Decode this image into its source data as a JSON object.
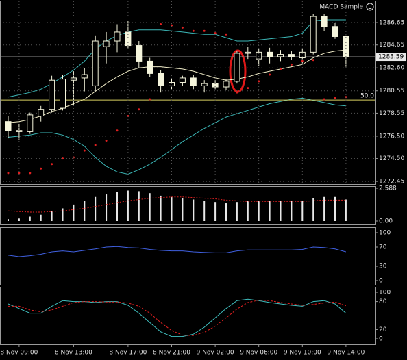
{
  "chart_data": [
    {
      "type": "candlestick",
      "title": "MACD Sample",
      "open": [
        1277.8,
        1277.0,
        1276.9,
        1278.3,
        1278.9,
        1279.0,
        1281.5,
        1281.7,
        1281.0,
        1284.5,
        1285.0,
        1285.8,
        1284.6,
        1283.2,
        1282.1,
        1281.0,
        1281.3,
        1281.7,
        1281.0,
        1281.2,
        1280.9,
        1281.4,
        1283.9,
        1283.4,
        1284.0,
        1283.6,
        1283.8,
        1283.5,
        1284.0,
        1287.2,
        1286.3,
        1285.4
      ],
      "high": [
        1278.3,
        1277.6,
        1278.6,
        1279.2,
        1281.9,
        1282.0,
        1282.3,
        1282.6,
        1285.5,
        1285.8,
        1286.5,
        1286.8,
        1285.0,
        1283.5,
        1282.4,
        1281.6,
        1281.9,
        1282.0,
        1281.5,
        1281.5,
        1281.6,
        1284.1,
        1284.5,
        1284.3,
        1284.4,
        1284.2,
        1284.1,
        1284.3,
        1287.4,
        1287.4,
        1286.6,
        1285.5
      ],
      "low": [
        1276.3,
        1276.2,
        1276.7,
        1277.8,
        1278.6,
        1278.8,
        1279.3,
        1280.5,
        1280.5,
        1283.0,
        1284.0,
        1284.3,
        1282.6,
        1281.8,
        1280.4,
        1280.6,
        1281.0,
        1280.7,
        1280.4,
        1280.7,
        1280.6,
        1281.2,
        1283.4,
        1282.8,
        1283.0,
        1283.2,
        1283.3,
        1283.0,
        1283.8,
        1285.9,
        1285.2,
        1282.7
      ],
      "close": [
        1277.0,
        1276.9,
        1278.4,
        1278.9,
        1281.5,
        1281.6,
        1281.7,
        1282.0,
        1285.0,
        1285.0,
        1285.8,
        1284.6,
        1283.2,
        1282.1,
        1281.0,
        1281.3,
        1281.7,
        1281.0,
        1281.2,
        1280.9,
        1281.4,
        1283.9,
        1284.0,
        1284.0,
        1283.6,
        1283.8,
        1283.6,
        1284.0,
        1287.2,
        1286.3,
        1285.4,
        1283.59
      ],
      "color": "#f5f5dc",
      "bands": {
        "color": "#3cb8b8",
        "upper": [
          1280.0,
          1280.2,
          1280.4,
          1280.7,
          1281.2,
          1281.8,
          1282.4,
          1283.2,
          1284.3,
          1285.0,
          1285.5,
          1285.8,
          1286.0,
          1286.0,
          1286.0,
          1285.9,
          1285.8,
          1285.7,
          1285.6,
          1285.6,
          1285.3,
          1285.0,
          1285.0,
          1285.1,
          1285.2,
          1285.3,
          1285.4,
          1285.7,
          1286.8,
          1286.9,
          1286.9,
          1286.9
        ],
        "lower": [
          1276.4,
          1276.5,
          1276.6,
          1276.8,
          1276.8,
          1276.6,
          1276.2,
          1275.6,
          1274.6,
          1273.8,
          1273.3,
          1273.1,
          1273.5,
          1274.0,
          1274.6,
          1275.3,
          1276.0,
          1276.6,
          1277.2,
          1277.7,
          1278.2,
          1278.5,
          1278.8,
          1279.1,
          1279.4,
          1279.6,
          1279.8,
          1279.9,
          1279.7,
          1279.5,
          1279.3,
          1279.2
        ]
      },
      "ma": {
        "color": "#f0ecc8",
        "values": [
          1277.7,
          1277.8,
          1278.0,
          1278.3,
          1278.7,
          1279.0,
          1279.4,
          1279.8,
          1280.5,
          1281.2,
          1281.8,
          1282.3,
          1282.6,
          1282.7,
          1282.7,
          1282.6,
          1282.5,
          1282.3,
          1282.0,
          1281.7,
          1281.5,
          1281.6,
          1281.8,
          1282.1,
          1282.3,
          1282.5,
          1282.7,
          1282.9,
          1283.5,
          1283.9,
          1284.1,
          1284.2
        ]
      },
      "sar": {
        "color": "#e02020",
        "values": [
          1273.2,
          1273.2,
          1273.2,
          1273.6,
          1274.0,
          1274.5,
          1274.6,
          1275.2,
          1275.7,
          1276.1,
          1277.0,
          1278.3,
          1278.9,
          1279.8,
          1286.5,
          1286.4,
          1286.2,
          1285.9,
          1285.9,
          1285.7,
          1285.6,
          1280.4,
          1280.8,
          1281.4,
          1282.0,
          1282.5,
          1282.9,
          1283.2,
          1283.3,
          1279.8,
          1279.9,
          1280.0
        ]
      },
      "current_price": 1283.59,
      "level": 1279.73,
      "level_label": "50.0",
      "ylim": [
        1272.15,
        1288.55
      ],
      "yticks": [
        1286.65,
        1284.65,
        {
          "value": 1282.6,
          "label": "1282.60"
        },
        1280.55,
        1278.55,
        {
          "value": 1276.5,
          "label": "1276.50"
        },
        {
          "value": 1274.5,
          "label": "1274.50"
        },
        1272.45
      ],
      "grid": true
    },
    {
      "type": "bar",
      "color": "#e8e8e8",
      "values": [
        0.15,
        0.2,
        0.35,
        0.5,
        0.8,
        1.0,
        1.3,
        1.6,
        1.9,
        2.1,
        2.3,
        2.4,
        2.35,
        2.2,
        2.0,
        1.9,
        1.8,
        1.7,
        1.6,
        1.5,
        1.4,
        1.5,
        1.6,
        1.6,
        1.6,
        1.6,
        1.6,
        1.6,
        1.8,
        1.9,
        1.9,
        1.7
      ],
      "signal": {
        "color": "#e02020",
        "values": [
          0.8,
          0.75,
          0.7,
          0.7,
          0.75,
          0.8,
          0.9,
          1.0,
          1.15,
          1.3,
          1.45,
          1.6,
          1.7,
          1.8,
          1.85,
          1.9,
          1.9,
          1.85,
          1.8,
          1.75,
          1.65,
          1.6,
          1.55,
          1.55,
          1.55,
          1.55,
          1.55,
          1.55,
          1.6,
          1.65,
          1.65,
          1.65
        ]
      },
      "ylim": [
        0,
        2.588
      ],
      "yticks": [
        2.588,
        {
          "value": 0,
          "label": "0.00"
        }
      ]
    },
    {
      "type": "line",
      "color": "#4060e0",
      "values": [
        53,
        50,
        52,
        55,
        60,
        62,
        60,
        63,
        66,
        70,
        71,
        69,
        68,
        65,
        63,
        62,
        62,
        60,
        59,
        58,
        58,
        62,
        64,
        64,
        64,
        64,
        64,
        65,
        70,
        69,
        66,
        60
      ],
      "ylim": [
        0,
        100
      ],
      "yticks": [
        100,
        70,
        30,
        0
      ]
    },
    {
      "type": "line",
      "color": "#40c0c0",
      "values": [
        75,
        65,
        55,
        55,
        70,
        82,
        80,
        80,
        78,
        80,
        80,
        72,
        55,
        35,
        15,
        5,
        5,
        10,
        25,
        45,
        65,
        82,
        85,
        82,
        78,
        75,
        72,
        70,
        80,
        82,
        75,
        55
      ],
      "signal": {
        "color": "#e02020",
        "values": [
          70,
          70,
          62,
          58,
          62,
          70,
          78,
          80,
          80,
          79,
          79,
          77,
          70,
          55,
          35,
          18,
          8,
          7,
          14,
          27,
          45,
          64,
          78,
          83,
          82,
          78,
          75,
          72,
          74,
          77,
          79,
          71
        ]
      },
      "ylim": [
        0,
        100
      ],
      "yticks": [
        100,
        80,
        20,
        0
      ],
      "categories": [
        null,
        "8 Nov 09:00",
        null,
        null,
        null,
        null,
        "8 Nov 13:00",
        null,
        null,
        null,
        null,
        "8 Nov 17:00",
        null,
        null,
        null,
        "8 Nov 21:00",
        null,
        null,
        null,
        "9 Nov 02:00",
        null,
        null,
        null,
        "9 Nov 06:00",
        null,
        null,
        null,
        "9 Nov 10:00",
        null,
        null,
        null,
        "9 Nov 14:00"
      ]
    }
  ]
}
